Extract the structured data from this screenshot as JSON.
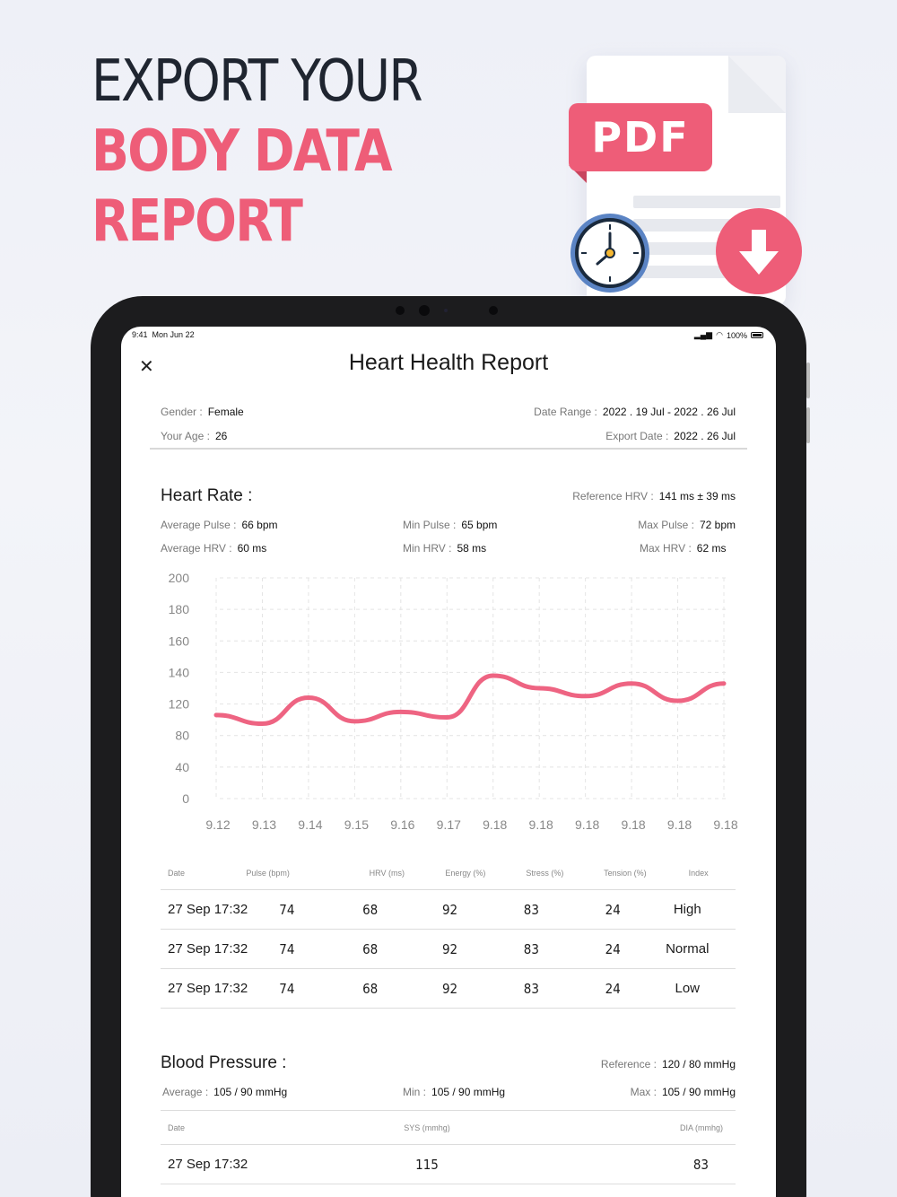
{
  "headline": {
    "line1": "EXPORT YOUR",
    "line2": "BODY DATA",
    "line3": "REPORT"
  },
  "illustration": {
    "badge": "PDF",
    "icons": [
      "clock-icon",
      "download-icon",
      "document-icon"
    ]
  },
  "status_bar": {
    "time": "9:41",
    "date": "Mon Jun 22",
    "battery": "100%"
  },
  "report": {
    "title": "Heart Health Report",
    "gender_label": "Gender :",
    "gender": "Female",
    "age_label": "Your Age :",
    "age": "26",
    "date_range_label": "Date Range :",
    "date_range": "2022 . 19 Jul - 2022 . 26 Jul",
    "export_date_label": "Export Date :",
    "export_date": "2022 . 26 Jul"
  },
  "heart_rate": {
    "title": "Heart Rate :",
    "ref_label": "Reference HRV :",
    "ref": "141 ms ± 39 ms",
    "avg_pulse_label": "Average Pulse :",
    "avg_pulse": "66 bpm",
    "min_pulse_label": "Min Pulse :",
    "min_pulse": "65 bpm",
    "max_pulse_label": "Max Pulse :",
    "max_pulse": "72 bpm",
    "avg_hrv_label": "Average HRV :",
    "avg_hrv": "60 ms",
    "min_hrv_label": "Min HRV :",
    "min_hrv": "58 ms",
    "max_hrv_label": "Max HRV :",
    "max_hrv": "62 ms"
  },
  "chart_data": {
    "type": "line",
    "x": [
      "9.12",
      "9.13",
      "9.14",
      "9.15",
      "9.16",
      "9.17",
      "9.18",
      "9.18",
      "9.18",
      "9.18",
      "9.18",
      "9.18"
    ],
    "y_ticks": [
      "200",
      "180",
      "160",
      "140",
      "120",
      "80",
      "40",
      "0"
    ],
    "series": [
      {
        "values": [
          106,
          95,
          124,
          98,
          110,
          103,
          138,
          130,
          125,
          133,
          122,
          133
        ]
      }
    ],
    "color": "#ee6482",
    "grid": true
  },
  "hr_table": {
    "headers": [
      "Date",
      "Pulse (bpm)",
      "HRV (ms)",
      "Energy (%)",
      "Stress (%)",
      "Tension (%)",
      "Index"
    ],
    "rows": [
      [
        "27 Sep 17:32",
        "74",
        "68",
        "92",
        "83",
        "24",
        "High"
      ],
      [
        "27 Sep 17:32",
        "74",
        "68",
        "92",
        "83",
        "24",
        "Normal"
      ],
      [
        "27 Sep 17:32",
        "74",
        "68",
        "92",
        "83",
        "24",
        "Low"
      ]
    ]
  },
  "blood_pressure": {
    "title": "Blood Pressure :",
    "ref_label": "Reference :",
    "ref": "120 / 80 mmHg",
    "avg_label": "Average :",
    "avg": "105 / 90 mmHg",
    "min_label": "Min :",
    "min": "105 / 90 mmHg",
    "max_label": "Max :",
    "max": "105 / 90 mmHg",
    "headers": [
      "Date",
      "SYS (mmhg)",
      "DIA (mmhg)"
    ],
    "rows": [
      [
        "27 Sep 17:32",
        "115",
        "83"
      ]
    ]
  }
}
